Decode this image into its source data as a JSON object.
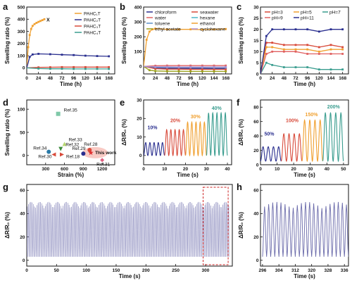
{
  "chart_data": [
    {
      "panel": "a",
      "type": "line",
      "xlabel": "Time (h)",
      "ylabel": "Swelling ratio (%)",
      "xlim": [
        0,
        180
      ],
      "ylim": [
        -50,
        500
      ],
      "xticks": [
        0,
        24,
        48,
        72,
        96,
        120,
        144,
        168
      ],
      "yticks": [
        0,
        100,
        200,
        300,
        400,
        500
      ],
      "legend_position": "top-right",
      "annotation": "X",
      "series": [
        {
          "name": "PAHC₁T",
          "color": "#f0a030",
          "x": [
            0,
            3,
            6,
            9,
            12,
            16,
            20,
            24,
            28,
            32,
            36
          ],
          "values": [
            0,
            170,
            270,
            320,
            345,
            360,
            370,
            378,
            385,
            392,
            400
          ]
        },
        {
          "name": "PAHC₂T",
          "color": "#2a2f8f",
          "x": [
            0,
            6,
            12,
            24,
            48,
            72,
            96,
            120,
            144,
            168
          ],
          "values": [
            0,
            90,
            110,
            115,
            112,
            108,
            105,
            100,
            97,
            95
          ]
        },
        {
          "name": "PAHC₃T",
          "color": "#d84a3a",
          "x": [
            0,
            24,
            48,
            72,
            96,
            120,
            144,
            168
          ],
          "values": [
            0,
            4,
            5,
            6,
            6,
            6,
            6,
            6
          ]
        },
        {
          "name": "PAHC₄T",
          "color": "#3a9d8f",
          "x": [
            0,
            24,
            48,
            72,
            96,
            120,
            144,
            168
          ],
          "values": [
            0,
            -6,
            -8,
            -8,
            -9,
            -9,
            -9,
            -9
          ]
        }
      ]
    },
    {
      "panel": "b",
      "type": "line",
      "xlabel": "Time (h)",
      "ylabel": "Swelling ratio (%)",
      "xlim": [
        0,
        180
      ],
      "ylim": [
        -50,
        400
      ],
      "xticks": [
        0,
        24,
        48,
        72,
        96,
        120,
        144,
        168
      ],
      "yticks": [
        0,
        100,
        200,
        300,
        400
      ],
      "legend_position": "top",
      "series": [
        {
          "name": "chloroform",
          "color": "#2a2f8f",
          "x": [
            0,
            24,
            48,
            72,
            96,
            120,
            144,
            168
          ],
          "values": [
            0,
            -10,
            -12,
            -13,
            -13,
            -13,
            -14,
            -14
          ]
        },
        {
          "name": "seawater",
          "color": "#d84a3a",
          "x": [
            0,
            24,
            48,
            72,
            96,
            120,
            144,
            168
          ],
          "values": [
            0,
            -15,
            -18,
            -18,
            -19,
            -19,
            -19,
            -19
          ]
        },
        {
          "name": "water",
          "color": "#e06060",
          "x": [
            0,
            24,
            48,
            72,
            96,
            120,
            144,
            168
          ],
          "values": [
            0,
            5,
            6,
            6,
            6,
            6,
            6,
            6
          ]
        },
        {
          "name": "hexane",
          "color": "#4ab6c8",
          "x": [
            0,
            24,
            48,
            72,
            96,
            120,
            144,
            168
          ],
          "values": [
            0,
            -3,
            -4,
            -4,
            -4,
            -4,
            -4,
            -4
          ]
        },
        {
          "name": "toluene",
          "color": "#5a8fc8",
          "x": [
            0,
            24,
            48,
            72,
            96,
            120,
            144,
            168
          ],
          "values": [
            0,
            -5,
            -6,
            -6,
            -6,
            -6,
            -7,
            -7
          ]
        },
        {
          "name": "ethanol",
          "color": "#f0a030",
          "x": [
            0,
            6,
            12,
            18,
            24,
            48,
            72,
            96,
            120,
            144,
            168
          ],
          "values": [
            0,
            180,
            235,
            250,
            255,
            250,
            250,
            250,
            248,
            250,
            252
          ]
        },
        {
          "name": "ethyl acetate",
          "color": "#9aa018",
          "x": [
            0,
            12,
            24,
            48,
            72,
            96,
            120,
            144,
            168
          ],
          "values": [
            0,
            -25,
            -30,
            -32,
            -32,
            -33,
            -33,
            -33,
            -33
          ]
        },
        {
          "name": "cyclohexane",
          "color": "#b090d0",
          "x": [
            0,
            24,
            48,
            72,
            96,
            120,
            144,
            168
          ],
          "values": [
            0,
            -2,
            -2,
            -3,
            -3,
            -3,
            -3,
            -3
          ]
        }
      ]
    },
    {
      "panel": "c",
      "type": "line",
      "xlabel": "Time (h)",
      "ylabel": "Swelling ratio (%)",
      "xlim": [
        0,
        180
      ],
      "ylim": [
        0,
        30
      ],
      "xticks": [
        0,
        24,
        48,
        72,
        96,
        120,
        144,
        168
      ],
      "yticks": [
        0,
        5,
        10,
        15,
        20,
        25,
        30
      ],
      "legend_position": "top",
      "series": [
        {
          "name": "pH=3",
          "color": "#d84a3a",
          "x": [
            0,
            12,
            24,
            48,
            72,
            96,
            120,
            144,
            168
          ],
          "values": [
            0,
            14,
            14,
            13,
            13,
            13,
            12,
            13,
            12
          ]
        },
        {
          "name": "pH=5",
          "color": "#f0a030",
          "x": [
            0,
            12,
            24,
            48,
            72,
            96,
            120,
            144,
            168
          ],
          "values": [
            0,
            12,
            12,
            11,
            11,
            11,
            10,
            11,
            11
          ]
        },
        {
          "name": "pH=7",
          "color": "#3a9d8f",
          "x": [
            0,
            12,
            24,
            48,
            72,
            96,
            120,
            144,
            168
          ],
          "values": [
            0,
            5,
            4,
            3,
            3,
            3,
            2,
            2,
            2
          ]
        },
        {
          "name": "pH=9",
          "color": "#e06060",
          "x": [
            0,
            12,
            24,
            48,
            72,
            96,
            120,
            144,
            168
          ],
          "values": [
            0,
            9,
            10,
            10,
            10,
            9,
            9,
            9,
            9
          ]
        },
        {
          "name": "pH=11",
          "color": "#2a2f8f",
          "x": [
            0,
            12,
            24,
            48,
            72,
            96,
            120,
            144,
            168
          ],
          "values": [
            0,
            17,
            20,
            20,
            20,
            20,
            19,
            20,
            20
          ]
        }
      ]
    },
    {
      "panel": "d",
      "type": "scatter",
      "xlabel": "Strain (%)",
      "ylabel": "Swelling ratio (%)",
      "xlim": [
        0,
        1400
      ],
      "ylim": [
        -20,
        120
      ],
      "xticks": [
        300,
        600,
        900,
        1200
      ],
      "yticks": [
        0,
        50,
        100
      ],
      "points": [
        {
          "label": "Ref.35",
          "x": 500,
          "y": 90,
          "color": "#7fc8a8",
          "shape": "square"
        },
        {
          "label": "Ref.33",
          "x": 600,
          "y": 25,
          "color": "#b8d870",
          "shape": "triangle"
        },
        {
          "label": "Ref.32",
          "x": 540,
          "y": 14,
          "color": "#3a8a3a",
          "shape": "triangle-down"
        },
        {
          "label": "Ref.34",
          "x": 350,
          "y": 8,
          "color": "#2a7aa8",
          "shape": "circle"
        },
        {
          "label": "Ref.30",
          "x": 430,
          "y": 2,
          "color": "#d84a3a",
          "shape": "triangle-left"
        },
        {
          "label": "Ref.18",
          "x": 560,
          "y": 2,
          "color": "#d84a3a",
          "shape": "triangle-right"
        },
        {
          "label": "Ref.28",
          "x": 1000,
          "y": 12,
          "color": "#d84a3a",
          "shape": "circle"
        },
        {
          "label": "Ref.29",
          "x": 900,
          "y": 4,
          "color": "#2a2f8f",
          "shape": "circle"
        },
        {
          "label": "This work",
          "x": 1020,
          "y": 6,
          "color": "#e03030",
          "shape": "star"
        },
        {
          "label": "Ref.31",
          "x": 1200,
          "y": -10,
          "color": "#e06080",
          "shape": "diamond"
        }
      ]
    },
    {
      "panel": "e",
      "type": "line",
      "xlabel": "Time (s)",
      "ylabel": "ΔR/R₀ (%)",
      "xlim": [
        0,
        42
      ],
      "ylim": [
        -5,
        30
      ],
      "xticks": [
        0,
        10,
        20,
        30,
        40
      ],
      "yticks": [
        0,
        10,
        20,
        30
      ],
      "segments": [
        {
          "name": "10%",
          "color": "#2a2f8f",
          "t_start": 0,
          "t_end": 10,
          "cycles": 5,
          "min": 0,
          "max": 7
        },
        {
          "name": "20%",
          "color": "#d84a3a",
          "t_start": 10,
          "t_end": 20,
          "cycles": 5,
          "min": 0,
          "max": 14
        },
        {
          "name": "30%",
          "color": "#f0a030",
          "t_start": 20,
          "t_end": 30,
          "cycles": 5,
          "min": 0,
          "max": 18
        },
        {
          "name": "40%",
          "color": "#3a9d8f",
          "t_start": 30,
          "t_end": 40,
          "cycles": 5,
          "min": 0,
          "max": 23
        }
      ]
    },
    {
      "panel": "f",
      "type": "line",
      "xlabel": "Time (s)",
      "ylabel": "ΔR/R₀ (%)",
      "xlim": [
        0,
        53
      ],
      "ylim": [
        0,
        90
      ],
      "xticks": [
        0,
        10,
        20,
        30,
        40,
        50
      ],
      "yticks": [
        0,
        20,
        40,
        60,
        80
      ],
      "segments": [
        {
          "name": "50%",
          "color": "#2a2f8f",
          "t_start": 0,
          "t_end": 12.5,
          "cycles": 4,
          "min": 5,
          "max": 25
        },
        {
          "name": "100%",
          "color": "#d84a3a",
          "t_start": 12.5,
          "t_end": 25,
          "cycles": 4,
          "min": 5,
          "max": 43
        },
        {
          "name": "150%",
          "color": "#f0a030",
          "t_start": 25,
          "t_end": 37.5,
          "cycles": 4,
          "min": 5,
          "max": 62
        },
        {
          "name": "200%",
          "color": "#3a9d8f",
          "t_start": 37.5,
          "t_end": 50,
          "cycles": 4,
          "min": 5,
          "max": 72
        }
      ]
    },
    {
      "panel": "g",
      "type": "line",
      "xlabel": "Time (s)",
      "ylabel": "ΔR/R₀ (%)",
      "xlim": [
        0,
        345
      ],
      "ylim": [
        -5,
        65
      ],
      "xticks": [
        0,
        50,
        100,
        150,
        200,
        250,
        300
      ],
      "yticks": [
        0,
        20,
        40,
        60
      ],
      "series": [
        {
          "name": "",
          "color": "#6a6aaa",
          "t_start": 0,
          "t_end": 340,
          "period": 2,
          "min": 3,
          "max": 50
        }
      ],
      "highlight_range": [
        296,
        338
      ]
    },
    {
      "panel": "h",
      "type": "line",
      "xlabel": "Time (s)",
      "ylabel": "ΔR/R₀ (%)",
      "xlim": [
        295,
        338
      ],
      "ylim": [
        -5,
        65
      ],
      "xticks": [
        296,
        304,
        312,
        320,
        328,
        336
      ],
      "yticks": [
        0,
        20,
        40,
        60
      ],
      "series": [
        {
          "name": "",
          "color": "#6a6aaa",
          "t_start": 296,
          "t_end": 338,
          "period": 2,
          "min": 3,
          "max": 50
        }
      ]
    }
  ]
}
